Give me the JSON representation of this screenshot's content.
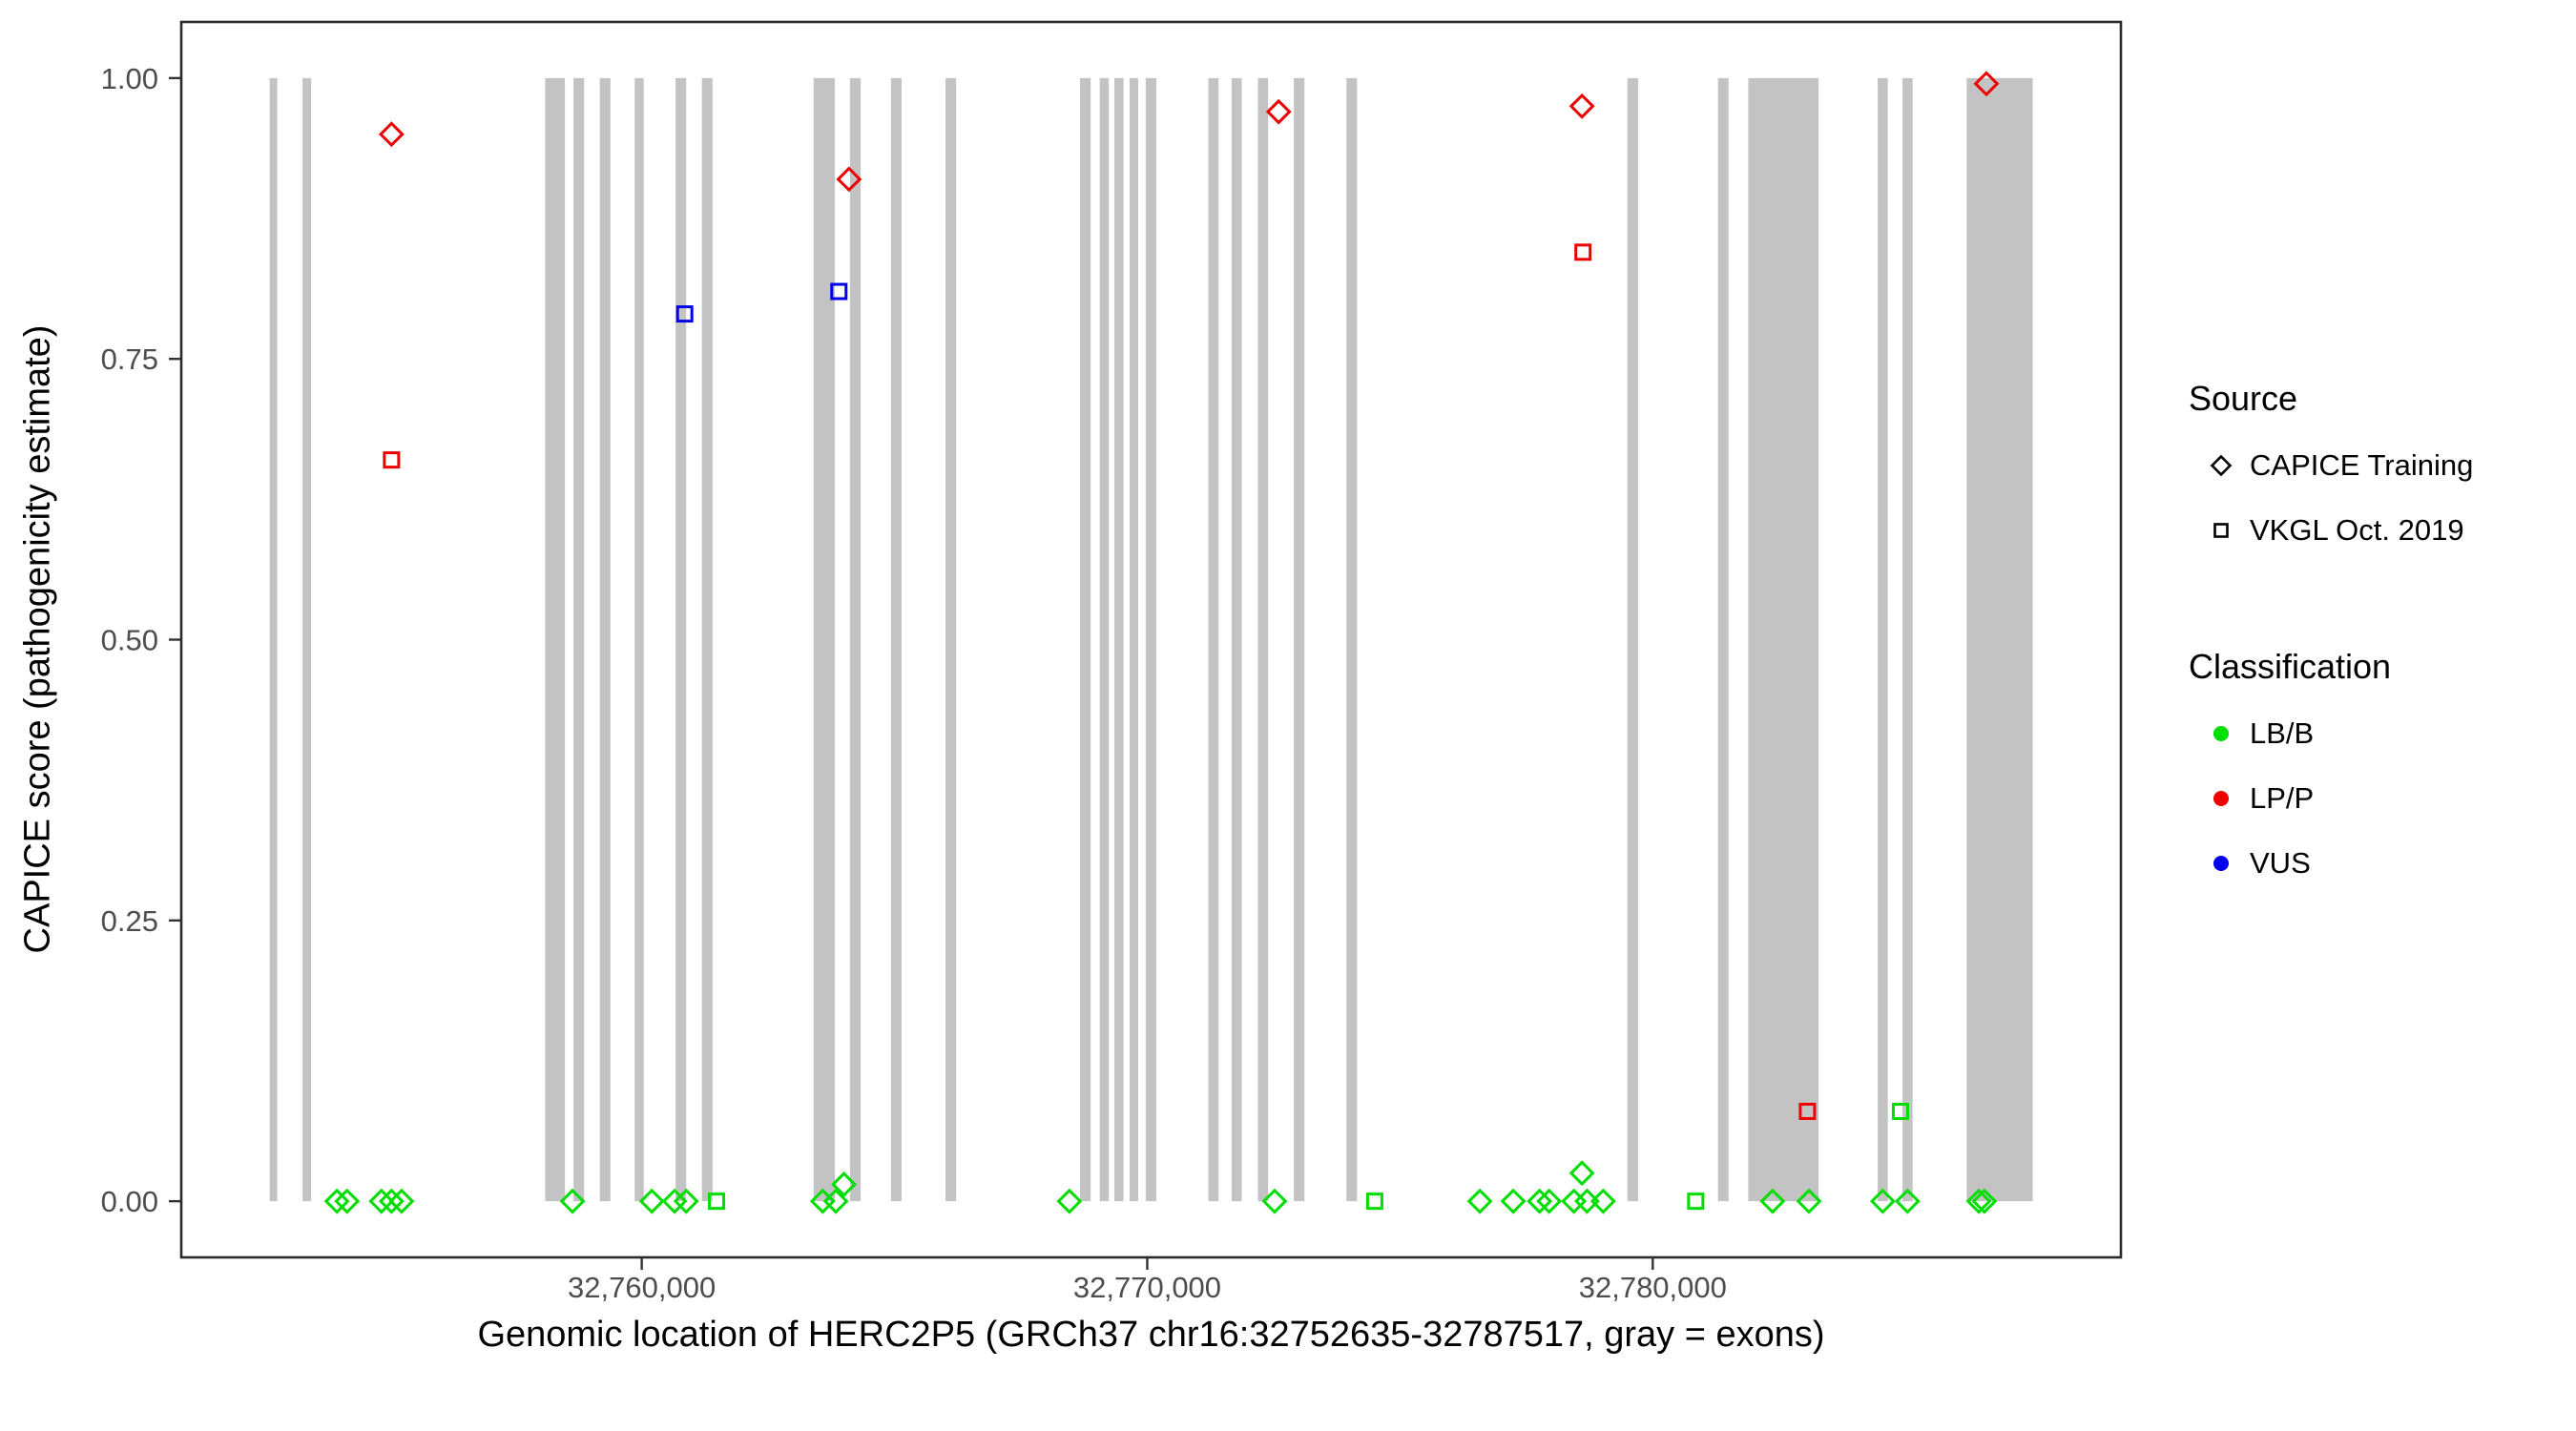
{
  "chart_data": {
    "type": "scatter",
    "title": "",
    "xlabel": "Genomic location of HERC2P5 (GRCh37 chr16:32752635-32787517, gray = exons)",
    "ylabel": "CAPICE score (pathogenicity estimate)",
    "xlim": [
      32750891,
      32789261
    ],
    "ylim": [
      -0.05,
      1.05
    ],
    "grid": false,
    "legend_position": "right",
    "x_ticks": [
      {
        "value": 32760000,
        "label": "32,760,000"
      },
      {
        "value": 32770000,
        "label": "32,770,000"
      },
      {
        "value": 32780000,
        "label": "32,780,000"
      }
    ],
    "y_ticks": [
      {
        "value": 0,
        "label": "0.00"
      },
      {
        "value": 0.25,
        "label": "0.25"
      },
      {
        "value": 0.5,
        "label": "0.50"
      },
      {
        "value": 0.75,
        "label": "0.75"
      },
      {
        "value": 1,
        "label": "1.00"
      }
    ],
    "exon_color": "#C3C3C3",
    "exons": [
      [
        32752640,
        32752790
      ],
      [
        32753290,
        32753460
      ],
      [
        32758090,
        32758480
      ],
      [
        32758650,
        32758860
      ],
      [
        32759170,
        32759380
      ],
      [
        32759860,
        32760040
      ],
      [
        32760670,
        32760880
      ],
      [
        32761190,
        32761400
      ],
      [
        32763400,
        32763820
      ],
      [
        32764120,
        32764330
      ],
      [
        32764930,
        32765140
      ],
      [
        32766010,
        32766220
      ],
      [
        32768670,
        32768880
      ],
      [
        32769060,
        32769240
      ],
      [
        32769350,
        32769530
      ],
      [
        32769650,
        32769820
      ],
      [
        32769970,
        32770180
      ],
      [
        32771210,
        32771410
      ],
      [
        32771670,
        32771870
      ],
      [
        32772190,
        32772390
      ],
      [
        32772900,
        32773110
      ],
      [
        32773940,
        32774150
      ],
      [
        32779500,
        32779710
      ],
      [
        32781290,
        32781500
      ],
      [
        32781890,
        32783280
      ],
      [
        32784450,
        32784650
      ],
      [
        32784940,
        32785140
      ],
      [
        32786210,
        32787517
      ]
    ],
    "series": [
      {
        "name": "CAPICE Training - LP/P",
        "source": "CAPICE Training",
        "classification": "LP/P",
        "shape": "diamond",
        "color": "#EE0000",
        "points": [
          [
            32755050,
            0.95
          ],
          [
            32764100,
            0.91
          ],
          [
            32772600,
            0.97
          ],
          [
            32778600,
            0.975
          ],
          [
            32786600,
            0.995
          ]
        ]
      },
      {
        "name": "CAPICE Training - LB/B",
        "source": "CAPICE Training",
        "classification": "LB/B",
        "shape": "diamond",
        "color": "#00DD00",
        "points": [
          [
            32753970,
            0
          ],
          [
            32754170,
            0
          ],
          [
            32754850,
            0
          ],
          [
            32755050,
            0
          ],
          [
            32755250,
            0
          ],
          [
            32758630,
            0
          ],
          [
            32760200,
            0
          ],
          [
            32760650,
            0
          ],
          [
            32760880,
            0
          ],
          [
            32763580,
            0
          ],
          [
            32763840,
            0
          ],
          [
            32764000,
            0.015
          ],
          [
            32768460,
            0
          ],
          [
            32772520,
            0
          ],
          [
            32776580,
            0
          ],
          [
            32777240,
            0
          ],
          [
            32777760,
            0
          ],
          [
            32777950,
            0
          ],
          [
            32778440,
            0
          ],
          [
            32778600,
            0.025
          ],
          [
            32778700,
            0
          ],
          [
            32779020,
            0
          ],
          [
            32782370,
            0
          ],
          [
            32783090,
            0
          ],
          [
            32784550,
            0
          ],
          [
            32785040,
            0
          ],
          [
            32786450,
            0
          ],
          [
            32786560,
            0
          ]
        ]
      },
      {
        "name": "VKGL Oct. 2019 - LP/P",
        "source": "VKGL Oct. 2019",
        "classification": "LP/P",
        "shape": "square",
        "color": "#EE0000",
        "points": [
          [
            32755050,
            0.66
          ],
          [
            32778620,
            0.845
          ],
          [
            32783060,
            0.08
          ]
        ]
      },
      {
        "name": "VKGL Oct. 2019 - VUS",
        "source": "VKGL Oct. 2019",
        "classification": "VUS",
        "shape": "square",
        "color": "#0000EE",
        "points": [
          [
            32760850,
            0.79
          ],
          [
            32763900,
            0.81
          ]
        ]
      },
      {
        "name": "VKGL Oct. 2019 - LB/B",
        "source": "VKGL Oct. 2019",
        "classification": "LB/B",
        "shape": "square",
        "color": "#00DD00",
        "points": [
          [
            32761480,
            0
          ],
          [
            32774500,
            0
          ],
          [
            32780850,
            0
          ],
          [
            32784900,
            0.08
          ]
        ]
      }
    ],
    "legend": {
      "source_title": "Source",
      "source_items": [
        {
          "label": "CAPICE Training",
          "shape": "diamond"
        },
        {
          "label": "VKGL Oct. 2019",
          "shape": "square"
        }
      ],
      "classification_title": "Classification",
      "classification_items": [
        {
          "label": "LB/B",
          "color": "#00DD00"
        },
        {
          "label": "LP/P",
          "color": "#EE0000"
        },
        {
          "label": "VUS",
          "color": "#0000EE"
        }
      ]
    }
  }
}
